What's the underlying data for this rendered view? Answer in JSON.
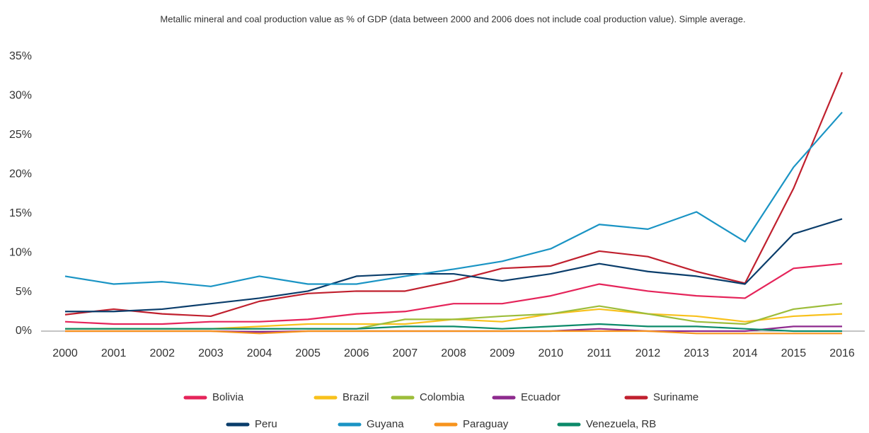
{
  "chart_data": {
    "type": "line",
    "title": "Metallic mineral and coal production value as % of GDP (data between 2000 and 2006 does not include coal production value). Simple average.",
    "categories": [
      "2000",
      "2001",
      "2002",
      "2003",
      "2004",
      "2005",
      "2006",
      "2007",
      "2008",
      "2009",
      "2010",
      "2011",
      "2012",
      "2013",
      "2014",
      "2015",
      "2016"
    ],
    "series": [
      {
        "name": "Bolivia",
        "color": "#e5245a",
        "values": [
          1.2,
          0.9,
          0.9,
          1.2,
          1.2,
          1.5,
          2.2,
          2.5,
          3.5,
          3.5,
          4.5,
          6.0,
          5.1,
          4.5,
          4.2,
          8.0,
          8.6
        ]
      },
      {
        "name": "Brazil",
        "color": "#f8c11c",
        "values": [
          0.3,
          0.3,
          0.3,
          0.3,
          0.6,
          0.9,
          0.9,
          0.9,
          1.5,
          1.2,
          2.2,
          2.8,
          2.2,
          1.9,
          1.2,
          1.9,
          2.2
        ]
      },
      {
        "name": "Colombia",
        "color": "#9dbd3a",
        "values": [
          0.3,
          0.3,
          0.3,
          0.3,
          0.3,
          0.3,
          0.3,
          1.5,
          1.5,
          1.9,
          2.2,
          3.2,
          2.2,
          1.2,
          0.9,
          2.8,
          3.5
        ]
      },
      {
        "name": "Ecuador",
        "color": "#8e2a8e",
        "values": [
          0,
          0,
          0,
          0,
          -0.1,
          0,
          0,
          0,
          0,
          0,
          0,
          0.3,
          0,
          0,
          0,
          0.6,
          0.6
        ]
      },
      {
        "name": "Suriname",
        "color": "#c0202e",
        "values": [
          2.1,
          2.8,
          2.2,
          1.9,
          3.8,
          4.8,
          5.1,
          5.1,
          6.4,
          8.0,
          8.3,
          10.2,
          9.5,
          7.6,
          6.1,
          18.2,
          33.0
        ]
      },
      {
        "name": "Peru",
        "color": "#0a3d6b",
        "values": [
          2.5,
          2.5,
          2.8,
          3.5,
          4.2,
          5.1,
          7.0,
          7.3,
          7.3,
          6.4,
          7.3,
          8.6,
          7.6,
          7.0,
          6.0,
          12.4,
          14.3
        ]
      },
      {
        "name": "Guyana",
        "color": "#1a94c4",
        "values": [
          7.0,
          6.0,
          6.3,
          5.7,
          7.0,
          6.0,
          6.0,
          7.0,
          7.9,
          8.9,
          10.5,
          13.6,
          13.0,
          15.2,
          11.4,
          20.9,
          27.9
        ]
      },
      {
        "name": "Paraguay",
        "color": "#f7941d",
        "values": [
          0,
          0,
          0,
          0,
          -0.3,
          0,
          0,
          0,
          0,
          0,
          0,
          0,
          0,
          -0.3,
          -0.3,
          -0.3,
          -0.3
        ]
      },
      {
        "name": "Venezuela, RB",
        "color": "#0c8a6a",
        "values": [
          0.3,
          0.3,
          0.3,
          0.3,
          0.3,
          0.3,
          0.3,
          0.6,
          0.6,
          0.3,
          0.6,
          0.9,
          0.6,
          0.6,
          0.3,
          0,
          0
        ]
      }
    ],
    "ylim": [
      0,
      35
    ],
    "yticks": [
      {
        "value": 0,
        "label": "0%"
      },
      {
        "value": 5,
        "label": "5%"
      },
      {
        "value": 10,
        "label": "10%"
      },
      {
        "value": 15,
        "label": "15%"
      },
      {
        "value": 20,
        "label": "20%"
      },
      {
        "value": 25,
        "label": "25%"
      },
      {
        "value": 30,
        "label": "30%"
      },
      {
        "value": 35,
        "label": "35%"
      }
    ],
    "grid": false
  }
}
